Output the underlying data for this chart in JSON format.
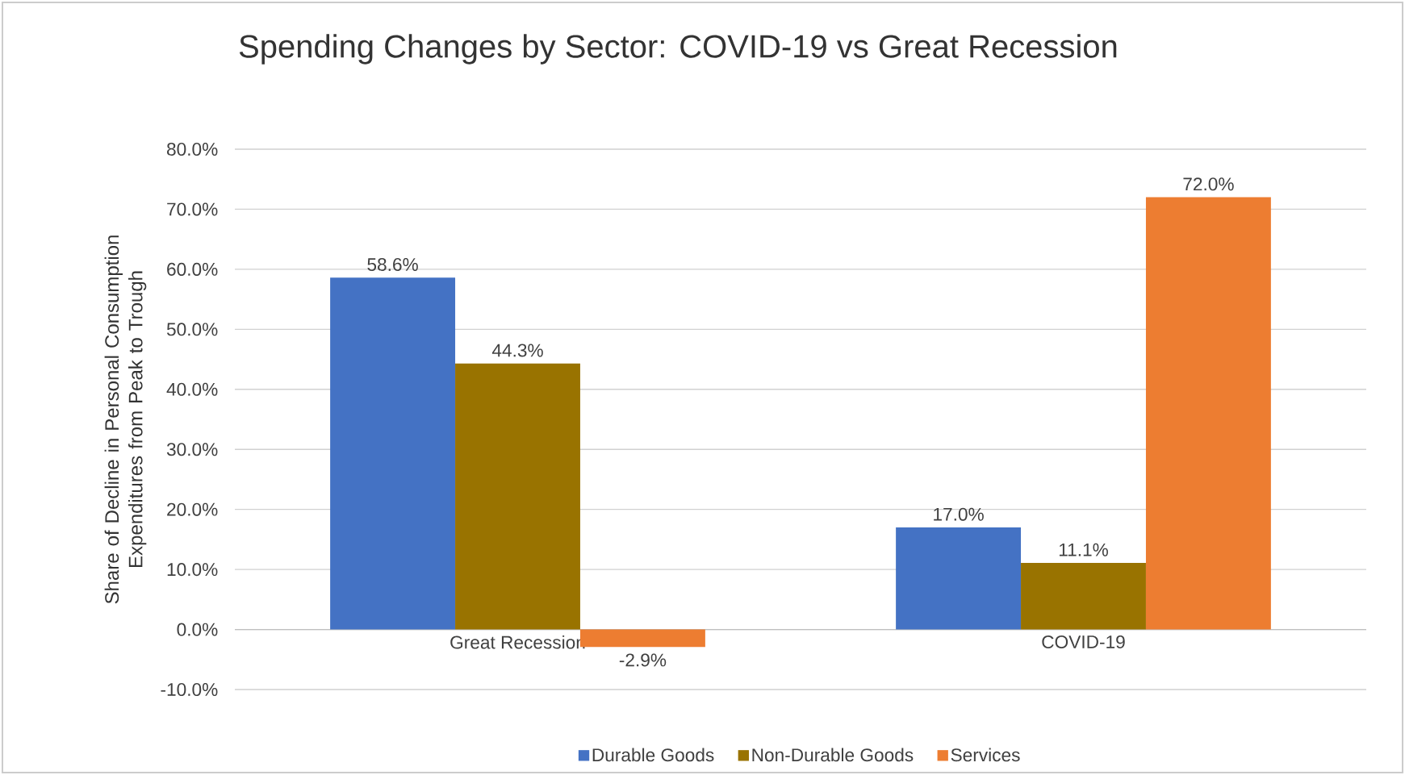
{
  "chart_data": {
    "type": "bar",
    "title": "Spending Changes by Sector: COVID-19 vs Great Recession",
    "ylabel": "Share of Decline in Personal Consumption Expenditures from Peak to Trough",
    "categories": [
      "Great Recession",
      "COVID-19"
    ],
    "series": [
      {
        "name": "Durable Goods",
        "color": "#4472c4",
        "values": [
          58.6,
          17.0
        ],
        "value_labels": [
          "58.6%",
          "17.0%"
        ]
      },
      {
        "name": "Non-Durable Goods",
        "color": "#997300",
        "values": [
          44.3,
          11.1
        ],
        "value_labels": [
          "44.3%",
          "11.1%"
        ]
      },
      {
        "name": "Services",
        "color": "#ed7d31",
        "values": [
          -2.9,
          72.0
        ],
        "value_labels": [
          "-2.9%",
          "72.0%"
        ]
      }
    ],
    "ylim": [
      -10,
      80
    ],
    "yticks": [
      {
        "value": -10,
        "label": "-10.0%"
      },
      {
        "value": 0,
        "label": "0.0%"
      },
      {
        "value": 10,
        "label": "10.0%"
      },
      {
        "value": 20,
        "label": "20.0%"
      },
      {
        "value": 30,
        "label": "30.0%"
      },
      {
        "value": 40,
        "label": "40.0%"
      },
      {
        "value": 50,
        "label": "50.0%"
      },
      {
        "value": 60,
        "label": "60.0%"
      },
      {
        "value": 70,
        "label": "70.0%"
      },
      {
        "value": 80,
        "label": "80.0%"
      }
    ],
    "grid": "y",
    "legend": "bottom"
  }
}
